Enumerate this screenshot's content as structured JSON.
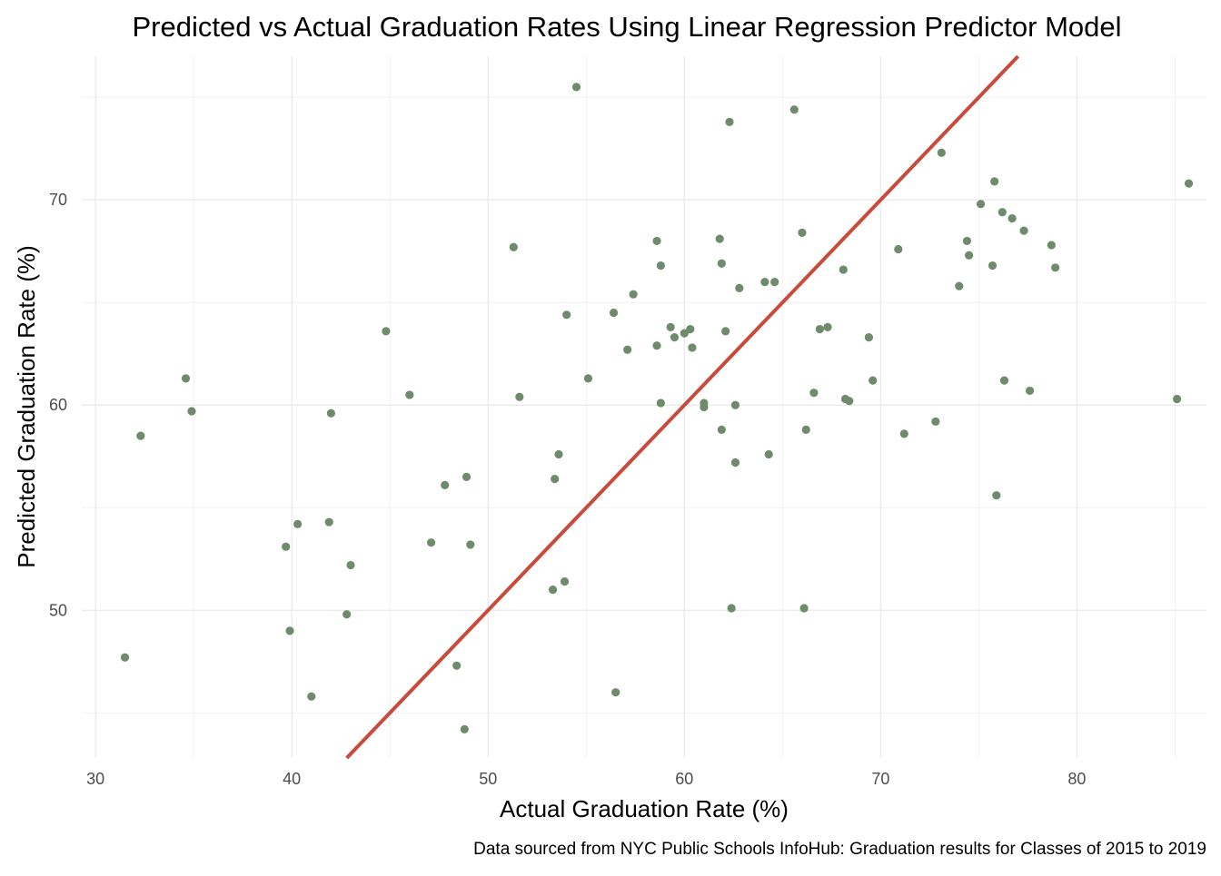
{
  "chart_data": {
    "type": "scatter",
    "title": "Predicted vs Actual Graduation Rates Using Linear Regression Predictor Model",
    "xlabel": "Actual Graduation Rate (%)",
    "ylabel": "Predicted Graduation Rate (%)",
    "caption": "Data sourced from NYC Public Schools InfoHub: Graduation results for Classes of 2015 to 2019",
    "xlim": [
      29.3,
      86.6
    ],
    "ylim": [
      42.8,
      77.0
    ],
    "x_ticks": [
      30,
      40,
      50,
      60,
      70,
      80
    ],
    "x_tick_labels": [
      "30",
      "40",
      "50",
      "60",
      "70",
      "80"
    ],
    "y_ticks": [
      50,
      60,
      70
    ],
    "y_tick_labels": [
      "50",
      "60",
      "70"
    ],
    "grid": true,
    "point_color": "#6e8b6b",
    "line_color": "#c84b3c",
    "reference_line": {
      "slope": 1,
      "intercept": 0
    },
    "points": [
      {
        "x": 31.5,
        "y": 47.7
      },
      {
        "x": 32.3,
        "y": 58.5
      },
      {
        "x": 34.6,
        "y": 61.3
      },
      {
        "x": 34.9,
        "y": 59.7
      },
      {
        "x": 39.7,
        "y": 53.1
      },
      {
        "x": 39.9,
        "y": 49.0
      },
      {
        "x": 40.3,
        "y": 54.2
      },
      {
        "x": 41.0,
        "y": 45.8
      },
      {
        "x": 41.9,
        "y": 54.3
      },
      {
        "x": 42.0,
        "y": 59.6
      },
      {
        "x": 42.8,
        "y": 49.8
      },
      {
        "x": 43.0,
        "y": 52.2
      },
      {
        "x": 44.8,
        "y": 63.6
      },
      {
        "x": 46.0,
        "y": 60.5
      },
      {
        "x": 47.1,
        "y": 53.3
      },
      {
        "x": 47.8,
        "y": 56.1
      },
      {
        "x": 48.4,
        "y": 47.3
      },
      {
        "x": 48.8,
        "y": 44.2
      },
      {
        "x": 48.9,
        "y": 56.5
      },
      {
        "x": 49.1,
        "y": 53.2
      },
      {
        "x": 51.3,
        "y": 67.7
      },
      {
        "x": 51.6,
        "y": 60.4
      },
      {
        "x": 53.3,
        "y": 51.0
      },
      {
        "x": 53.4,
        "y": 56.4
      },
      {
        "x": 53.6,
        "y": 57.6
      },
      {
        "x": 53.9,
        "y": 51.4
      },
      {
        "x": 54.0,
        "y": 64.4
      },
      {
        "x": 54.5,
        "y": 75.5
      },
      {
        "x": 55.1,
        "y": 61.3
      },
      {
        "x": 56.4,
        "y": 64.5
      },
      {
        "x": 56.5,
        "y": 46.0
      },
      {
        "x": 57.1,
        "y": 62.7
      },
      {
        "x": 57.4,
        "y": 65.4
      },
      {
        "x": 58.6,
        "y": 68.0
      },
      {
        "x": 58.6,
        "y": 62.9
      },
      {
        "x": 58.8,
        "y": 60.1
      },
      {
        "x": 58.8,
        "y": 66.8
      },
      {
        "x": 59.3,
        "y": 63.8
      },
      {
        "x": 59.5,
        "y": 63.3
      },
      {
        "x": 60.0,
        "y": 63.5
      },
      {
        "x": 60.3,
        "y": 63.7
      },
      {
        "x": 60.4,
        "y": 62.8
      },
      {
        "x": 61.0,
        "y": 60.1
      },
      {
        "x": 61.0,
        "y": 59.9
      },
      {
        "x": 61.8,
        "y": 68.1
      },
      {
        "x": 61.9,
        "y": 66.9
      },
      {
        "x": 61.9,
        "y": 58.8
      },
      {
        "x": 62.1,
        "y": 63.6
      },
      {
        "x": 62.3,
        "y": 73.8
      },
      {
        "x": 62.4,
        "y": 50.1
      },
      {
        "x": 62.6,
        "y": 57.2
      },
      {
        "x": 62.6,
        "y": 60.0
      },
      {
        "x": 62.8,
        "y": 65.7
      },
      {
        "x": 64.1,
        "y": 66.0
      },
      {
        "x": 64.3,
        "y": 57.6
      },
      {
        "x": 64.6,
        "y": 66.0
      },
      {
        "x": 65.6,
        "y": 74.4
      },
      {
        "x": 66.0,
        "y": 68.4
      },
      {
        "x": 66.1,
        "y": 50.1
      },
      {
        "x": 66.2,
        "y": 58.8
      },
      {
        "x": 66.6,
        "y": 60.6
      },
      {
        "x": 66.9,
        "y": 63.7
      },
      {
        "x": 67.3,
        "y": 63.8
      },
      {
        "x": 68.1,
        "y": 66.6
      },
      {
        "x": 68.2,
        "y": 60.3
      },
      {
        "x": 68.4,
        "y": 60.2
      },
      {
        "x": 69.4,
        "y": 63.3
      },
      {
        "x": 69.6,
        "y": 61.2
      },
      {
        "x": 70.9,
        "y": 67.6
      },
      {
        "x": 71.2,
        "y": 58.6
      },
      {
        "x": 72.8,
        "y": 59.2
      },
      {
        "x": 73.1,
        "y": 72.3
      },
      {
        "x": 74.0,
        "y": 65.8
      },
      {
        "x": 74.4,
        "y": 68.0
      },
      {
        "x": 74.5,
        "y": 67.3
      },
      {
        "x": 75.1,
        "y": 69.8
      },
      {
        "x": 75.7,
        "y": 66.8
      },
      {
        "x": 75.8,
        "y": 70.9
      },
      {
        "x": 75.9,
        "y": 55.6
      },
      {
        "x": 76.2,
        "y": 69.4
      },
      {
        "x": 76.3,
        "y": 61.2
      },
      {
        "x": 76.7,
        "y": 69.1
      },
      {
        "x": 77.3,
        "y": 68.5
      },
      {
        "x": 77.6,
        "y": 60.7
      },
      {
        "x": 78.7,
        "y": 67.8
      },
      {
        "x": 78.9,
        "y": 66.7
      },
      {
        "x": 85.1,
        "y": 60.3
      },
      {
        "x": 85.7,
        "y": 70.8
      }
    ]
  }
}
